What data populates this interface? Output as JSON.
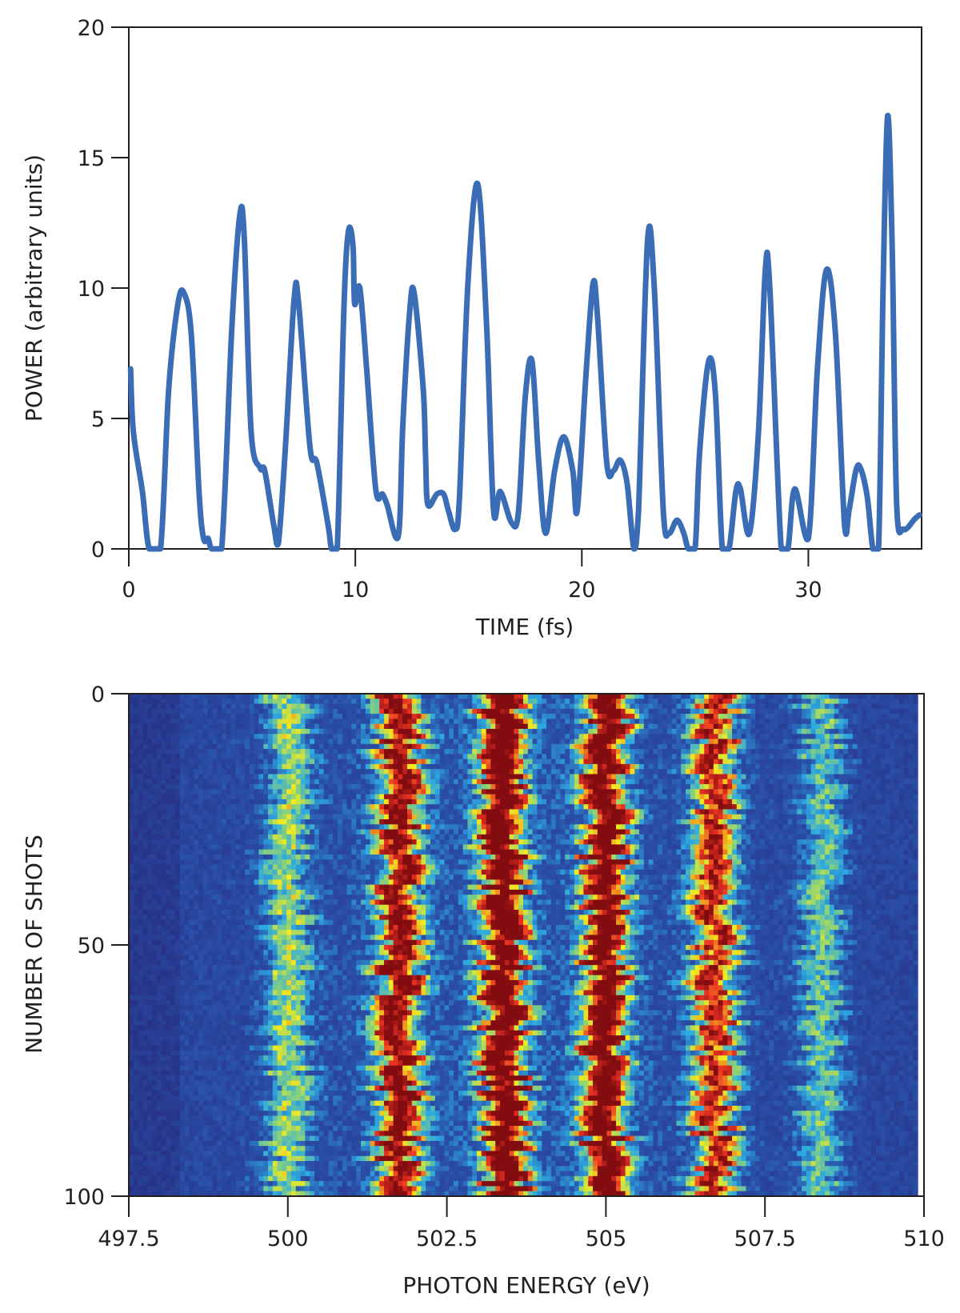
{
  "chart_data": [
    {
      "type": "line",
      "xlabel": "TIME (fs)",
      "ylabel": "POWER (arbitrary units)",
      "xlim": [
        0,
        35
      ],
      "ylim": [
        0,
        20
      ],
      "xticks": [
        "0",
        "10",
        "20",
        "30"
      ],
      "yticks": [
        "0",
        "5",
        "10",
        "15",
        "20"
      ],
      "grid": false,
      "color": "#3A6DB5",
      "x": [
        0.08,
        0.2,
        0.6,
        0.9,
        1.4,
        1.76,
        2.17,
        2.44,
        2.76,
        3.1,
        3.3,
        3.5,
        3.66,
        4.1,
        4.55,
        4.9,
        5.1,
        5.4,
        5.8,
        6.0,
        6.4,
        6.6,
        6.9,
        7.3,
        7.5,
        8.0,
        8.3,
        8.8,
        8.95,
        9.2,
        9.5,
        9.7,
        9.9,
        9.97,
        10.2,
        10.5,
        10.9,
        11.2,
        11.4,
        11.9,
        12.1,
        12.4,
        12.6,
        13.0,
        13.1,
        13.2,
        13.6,
        13.9,
        14.1,
        14.4,
        14.6,
        14.96,
        15.4,
        15.8,
        16.1,
        16.4,
        16.9,
        17.2,
        17.5,
        17.8,
        18.1,
        18.4,
        18.8,
        19.2,
        19.6,
        19.8,
        20.2,
        20.5,
        20.7,
        21.1,
        21.4,
        21.7,
        22.0,
        22.3,
        22.5,
        22.9,
        23.2,
        23.6,
        23.85,
        24.2,
        24.5,
        24.7,
        25.0,
        25.2,
        25.6,
        25.9,
        26.2,
        26.5,
        26.8,
        27.0,
        27.4,
        27.8,
        28.1,
        28.3,
        28.8,
        29.1,
        29.4,
        30.0,
        30.4,
        30.8,
        31.2,
        31.6,
        31.8,
        32.1,
        32.3,
        32.6,
        32.85,
        33.1,
        33.3,
        33.5,
        33.7,
        33.9,
        34.2,
        34.7,
        34.9
      ],
      "y": [
        6.9,
        4.5,
        2.2,
        0,
        0,
        6.1,
        9.4,
        9.8,
        8.2,
        2.2,
        0.4,
        0.4,
        0,
        0,
        8.5,
        12.8,
        11.9,
        4.5,
        3.1,
        3.0,
        0.9,
        0.2,
        3.7,
        9.6,
        9.4,
        3.9,
        3.3,
        0.9,
        0,
        0,
        9.3,
        12.2,
        11.6,
        9.4,
        10.0,
        6.9,
        2.3,
        2.1,
        1.7,
        0.5,
        4.8,
        9.1,
        9.8,
        6.1,
        3.6,
        1.7,
        2.1,
        2.1,
        1.5,
        0.75,
        2.0,
        10.0,
        14.0,
        8.5,
        1.5,
        2.2,
        1.0,
        1.4,
        5.8,
        7.2,
        3.3,
        0.6,
        3.0,
        4.3,
        3.0,
        1.5,
        6.9,
        10.2,
        8.8,
        3.3,
        3.0,
        3.4,
        2.5,
        0,
        1.4,
        11.8,
        10.0,
        1.4,
        0.6,
        1.1,
        0.6,
        0,
        0,
        3.7,
        7.2,
        5.9,
        0,
        0,
        2.2,
        2.3,
        0.6,
        4.5,
        10.7,
        10.0,
        0,
        0,
        2.3,
        0.4,
        6.9,
        10.7,
        8.2,
        0.9,
        1.5,
        3.0,
        3.1,
        2.0,
        0,
        0,
        10.0,
        16.6,
        11.6,
        1.7,
        0.75,
        1.15,
        1.3
      ]
    },
    {
      "type": "heatmap",
      "xlabel": "PHOTON ENERGY (eV)",
      "ylabel": "NUMBER OF SHOTS",
      "xlim": [
        497.5,
        510
      ],
      "ylim": [
        0,
        100
      ],
      "xticks": [
        "497.5",
        "500",
        "502.5",
        "505",
        "507.5",
        "510"
      ],
      "yticks": [
        "0",
        "50",
        "100"
      ],
      "colormap": "jet",
      "band_centers_eV": [
        500.0,
        501.75,
        503.4,
        505.0,
        506.7,
        508.4
      ],
      "band_relative_intensity": [
        0.35,
        0.8,
        0.95,
        0.9,
        0.7,
        0.3
      ]
    }
  ]
}
